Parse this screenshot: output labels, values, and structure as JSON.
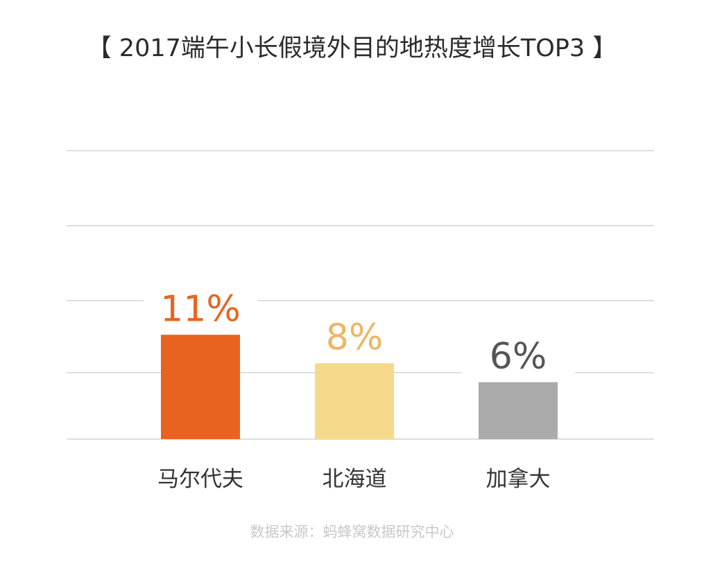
{
  "chart_data": {
    "type": "bar",
    "title": "【 2017端午小长假境外目的地热度增长TOP3 】",
    "categories": [
      "马尔代夫",
      "北海道",
      "加拿大"
    ],
    "values": [
      11,
      8,
      6
    ],
    "value_labels": [
      "11%",
      "8%",
      "6%"
    ],
    "ylim": [
      0,
      15
    ],
    "unit": "%",
    "grid": true,
    "legend": "none",
    "colors": [
      "#E8641E",
      "#F7D98B",
      "#ABABAB"
    ],
    "label_colors": [
      "#E8641E",
      "#EEB565",
      "#555555"
    ]
  },
  "source": "数据来源：蚂蜂窝数据研究中心"
}
